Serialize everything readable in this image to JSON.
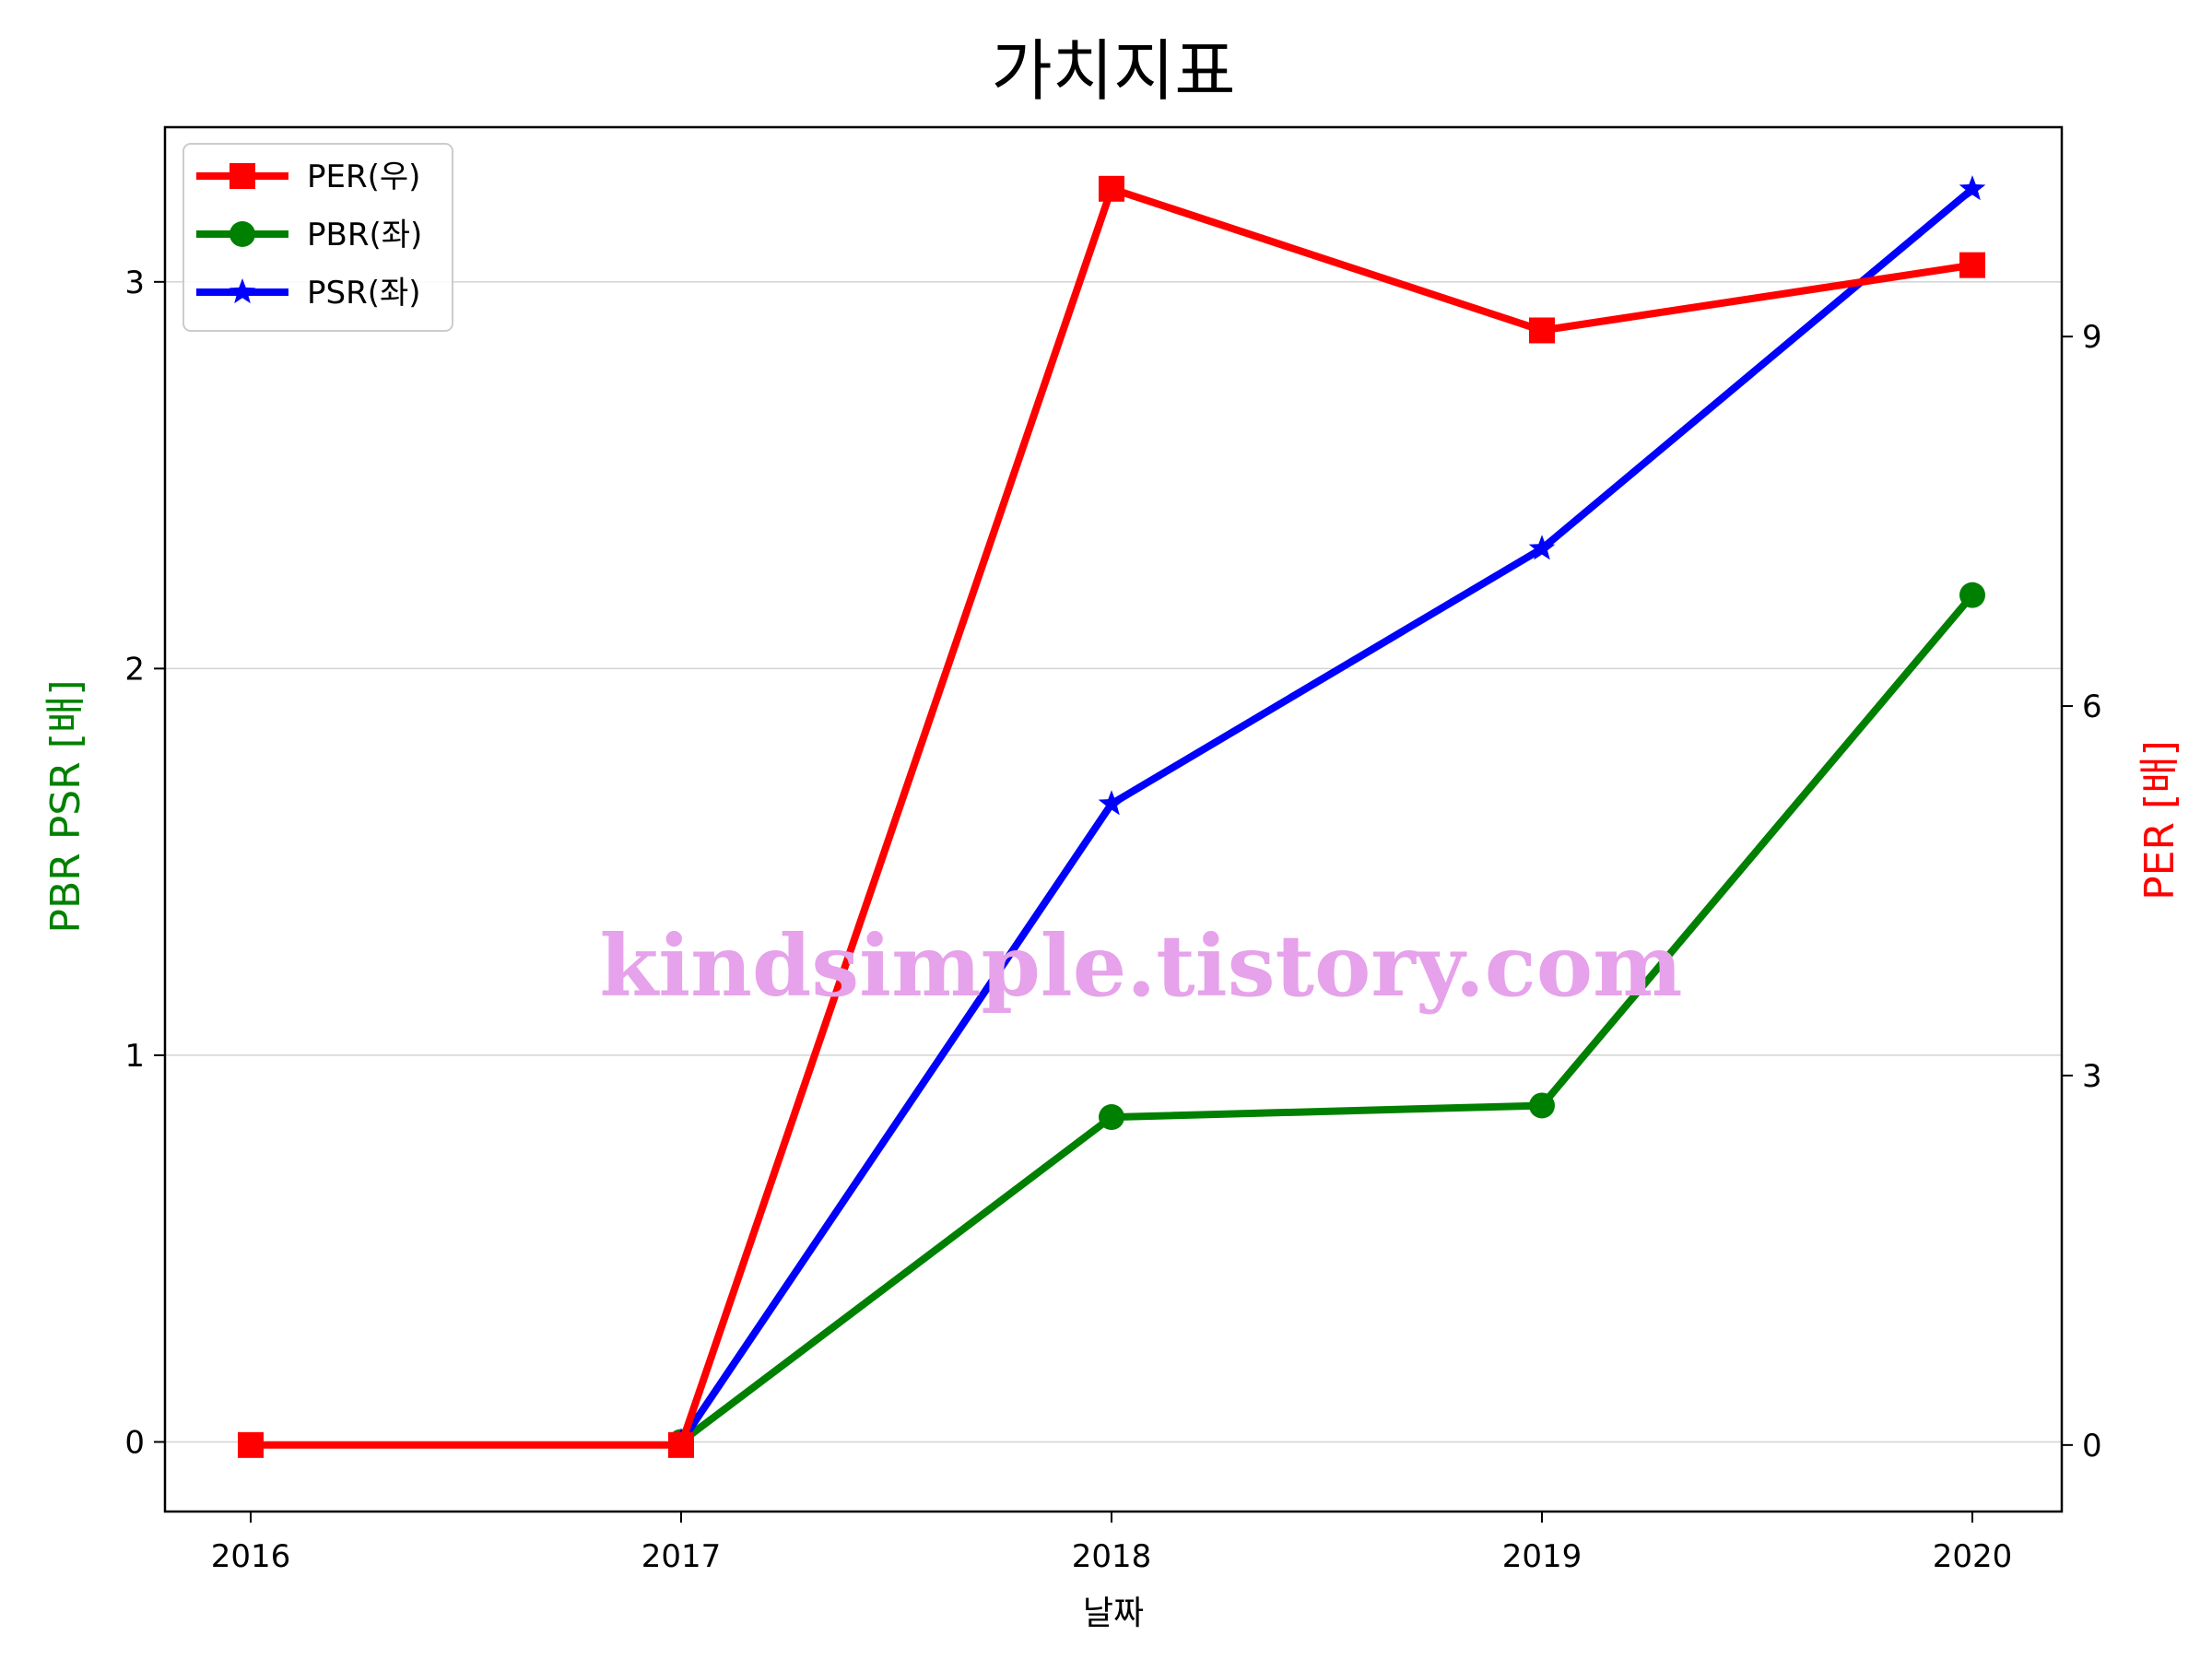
{
  "chart_data": {
    "type": "line",
    "title": "가치지표",
    "xlabel": "날짜",
    "ylabel_left": "PBR PSR [배]",
    "ylabel_right": "PER [배]",
    "categories": [
      "2016",
      "2017",
      "2018",
      "2019",
      "2020"
    ],
    "ylim_left": [
      -0.18,
      3.4
    ],
    "ylim_right": [
      -0.54,
      10.7
    ],
    "yticks_left": [
      "0",
      "1",
      "2",
      "3"
    ],
    "yticks_right": [
      "0",
      "3",
      "6",
      "9"
    ],
    "grid": true,
    "legend_position": "top-left",
    "series": [
      {
        "name": "PER(우)",
        "axis": "right",
        "color": "#ff0000",
        "marker": "square",
        "values": [
          0,
          0,
          10.2,
          9.05,
          9.58
        ]
      },
      {
        "name": "PBR(좌)",
        "axis": "left",
        "color": "#008000",
        "marker": "circle",
        "values": [
          null,
          0,
          0.84,
          0.87,
          2.19
        ]
      },
      {
        "name": "PSR(좌)",
        "axis": "left",
        "color": "#0000ff",
        "marker": "star",
        "values": [
          null,
          0,
          1.65,
          2.31,
          3.24
        ]
      }
    ],
    "watermark": "kindsimple.tistory.com",
    "axis_label_colors": {
      "left": "#008000",
      "right": "#ff0000"
    }
  }
}
